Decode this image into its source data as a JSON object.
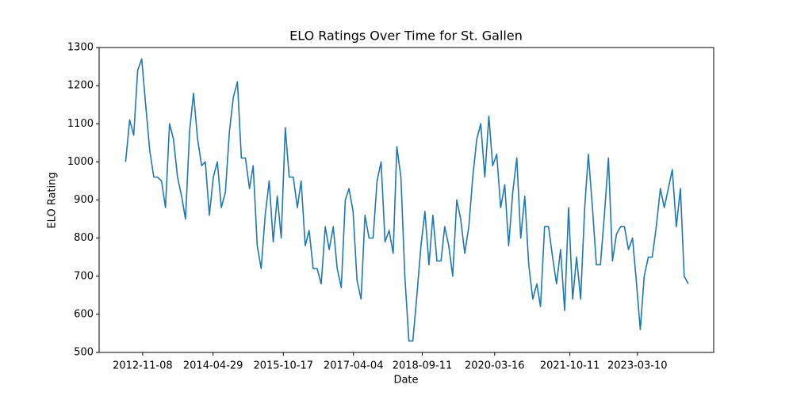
{
  "chart_data": {
    "type": "line",
    "title": "ELO Ratings Over Time for St. Gallen",
    "xlabel": "Date",
    "ylabel": "ELO Rating",
    "color": "#1f77b4",
    "xlim": [
      "2011-12-12",
      "2024-10-12"
    ],
    "xticks": [
      "2012-11-08",
      "2014-04-29",
      "2015-10-17",
      "2017-04-04",
      "2018-09-11",
      "2020-03-16",
      "2021-10-11",
      "2023-03-10"
    ],
    "ylim": [
      500,
      1300
    ],
    "yticks": [
      500,
      600,
      700,
      800,
      900,
      1000,
      1100,
      1200,
      1300
    ],
    "x": [
      "2012-07-01",
      "2012-08-01",
      "2012-09-01",
      "2012-10-01",
      "2012-11-01",
      "2012-12-01",
      "2013-01-01",
      "2013-02-01",
      "2013-03-01",
      "2013-04-01",
      "2013-05-01",
      "2013-06-01",
      "2013-07-01",
      "2013-08-01",
      "2013-09-01",
      "2013-10-01",
      "2013-11-01",
      "2013-12-01",
      "2014-01-01",
      "2014-02-01",
      "2014-03-01",
      "2014-04-01",
      "2014-05-01",
      "2014-06-01",
      "2014-07-01",
      "2014-08-01",
      "2014-09-01",
      "2014-10-01",
      "2014-11-01",
      "2014-12-01",
      "2015-01-01",
      "2015-02-01",
      "2015-03-01",
      "2015-04-01",
      "2015-05-01",
      "2015-06-01",
      "2015-07-01",
      "2015-08-01",
      "2015-09-01",
      "2015-10-01",
      "2015-11-01",
      "2015-12-01",
      "2016-01-01",
      "2016-02-01",
      "2016-03-01",
      "2016-04-01",
      "2016-05-01",
      "2016-06-01",
      "2016-07-01",
      "2016-08-01",
      "2016-09-01",
      "2016-10-01",
      "2016-11-01",
      "2016-12-01",
      "2017-01-01",
      "2017-02-01",
      "2017-03-01",
      "2017-04-01",
      "2017-05-01",
      "2017-06-01",
      "2017-07-01",
      "2017-08-01",
      "2017-09-01",
      "2017-10-01",
      "2017-11-01",
      "2017-12-01",
      "2018-01-01",
      "2018-02-01",
      "2018-03-01",
      "2018-04-01",
      "2018-05-01",
      "2018-06-01",
      "2018-07-01",
      "2018-08-01",
      "2018-09-01",
      "2018-10-01",
      "2018-11-01",
      "2018-12-01",
      "2019-01-01",
      "2019-02-01",
      "2019-03-01",
      "2019-04-01",
      "2019-05-01",
      "2019-06-01",
      "2019-07-01",
      "2019-08-01",
      "2019-09-01",
      "2019-10-01",
      "2019-11-01",
      "2019-12-01",
      "2020-01-01",
      "2020-02-01",
      "2020-03-01",
      "2020-04-01",
      "2020-05-01",
      "2020-06-01",
      "2020-07-01",
      "2020-08-01",
      "2020-09-01",
      "2020-10-01",
      "2020-11-01",
      "2020-12-01",
      "2021-01-01",
      "2021-02-01",
      "2021-03-01",
      "2021-04-01",
      "2021-05-01",
      "2021-06-01",
      "2021-07-01",
      "2021-08-01",
      "2021-09-01",
      "2021-10-01",
      "2021-11-01",
      "2021-12-01",
      "2022-01-01",
      "2022-02-01",
      "2022-03-01",
      "2022-04-01",
      "2022-05-01",
      "2022-06-01",
      "2022-07-01",
      "2022-08-01",
      "2022-09-01",
      "2022-10-01",
      "2022-11-01",
      "2022-12-01",
      "2023-01-01",
      "2023-02-01",
      "2023-03-01",
      "2023-04-01",
      "2023-05-01",
      "2023-06-01",
      "2023-07-01",
      "2023-08-01",
      "2023-09-01",
      "2023-10-01",
      "2023-11-01",
      "2023-12-01",
      "2024-01-01",
      "2024-02-01",
      "2024-03-01",
      "2024-04-01"
    ],
    "values": [
      1000,
      1110,
      1070,
      1240,
      1270,
      1150,
      1030,
      960,
      960,
      950,
      880,
      1100,
      1060,
      960,
      910,
      850,
      1080,
      1180,
      1060,
      990,
      1000,
      860,
      960,
      1000,
      880,
      920,
      1080,
      1170,
      1210,
      1010,
      1010,
      930,
      990,
      780,
      720,
      860,
      950,
      790,
      910,
      800,
      1090,
      960,
      960,
      880,
      950,
      780,
      820,
      720,
      720,
      680,
      830,
      770,
      830,
      720,
      670,
      900,
      930,
      870,
      690,
      640,
      860,
      800,
      800,
      950,
      1000,
      790,
      820,
      760,
      1040,
      960,
      700,
      530,
      530,
      650,
      780,
      870,
      730,
      860,
      740,
      740,
      830,
      780,
      700,
      900,
      850,
      760,
      830,
      960,
      1060,
      1100,
      960,
      1120,
      990,
      1020,
      880,
      940,
      780,
      920,
      1010,
      800,
      910,
      730,
      640,
      680,
      620,
      830,
      830,
      750,
      680,
      770,
      610,
      880,
      640,
      750,
      640,
      880,
      1020,
      880,
      730,
      730,
      860,
      1010,
      740,
      810,
      830,
      830,
      770,
      800,
      690,
      560,
      700,
      750,
      750,
      830,
      930,
      880,
      930,
      980,
      830,
      930,
      700,
      680
    ]
  }
}
